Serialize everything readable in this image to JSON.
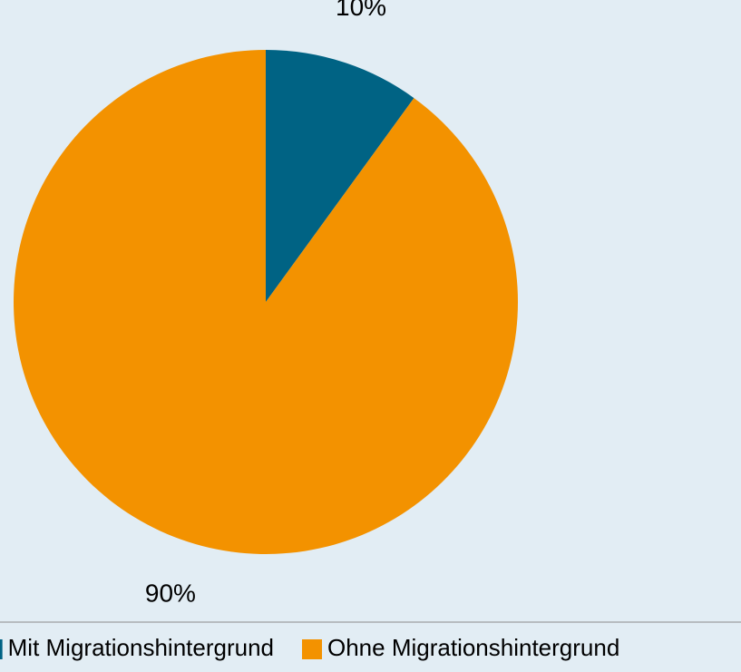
{
  "chart_data": {
    "type": "pie",
    "categories": [
      "Mit Migrationshintergrund",
      "Ohne Migrationshintergrund"
    ],
    "values": [
      10,
      90
    ],
    "value_labels": [
      "10%",
      "90%"
    ],
    "colors": [
      "#006384",
      "#f39200"
    ],
    "legend": "bottom"
  }
}
